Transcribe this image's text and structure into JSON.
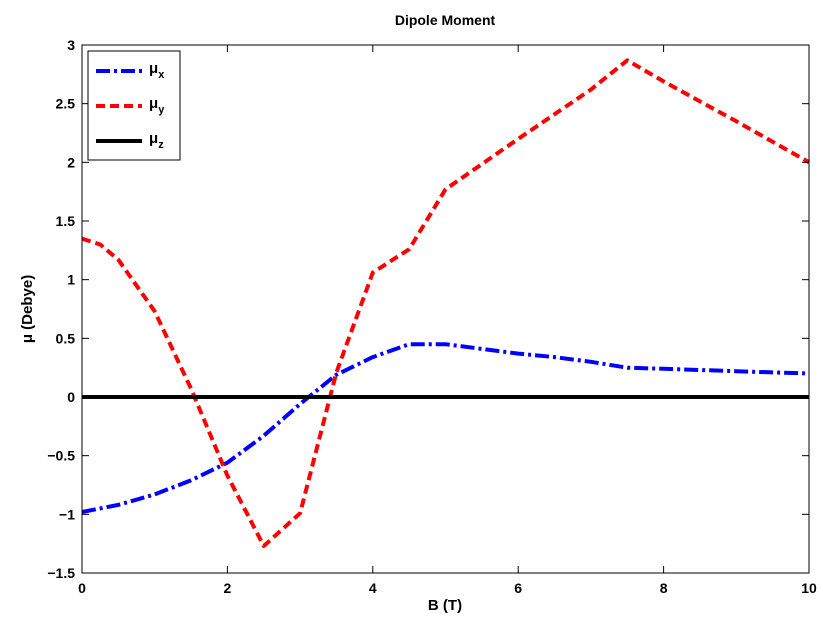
{
  "chart_data": {
    "type": "line",
    "title": "Dipole Moment",
    "xlabel": "B (T)",
    "ylabel": "μ (Debye)",
    "xlim": [
      0,
      10
    ],
    "ylim": [
      -1.5,
      3
    ],
    "xticks": [
      0,
      2,
      4,
      6,
      8,
      10
    ],
    "yticks": [
      -1.5,
      -1,
      -0.5,
      0,
      0.5,
      1,
      1.5,
      2,
      2.5,
      3
    ],
    "xtick_labels": [
      "0",
      "2",
      "4",
      "6",
      "8",
      "10"
    ],
    "ytick_labels": [
      "−1.5",
      "−1",
      "−0.5",
      "0",
      "0.5",
      "1",
      "1.5",
      "2",
      "2.5",
      "3"
    ],
    "grid": false,
    "legend_position": "top-left",
    "series": [
      {
        "name": "μx",
        "name_main": "μ",
        "name_sub": "x",
        "color": "#0000ff",
        "style": "dash-dot",
        "x": [
          0,
          0.5,
          1,
          1.5,
          2,
          2.5,
          3,
          3.5,
          4,
          4.5,
          5,
          5.5,
          6,
          6.5,
          7,
          7.5,
          8,
          8.5,
          9,
          9.5,
          10
        ],
        "y": [
          -0.98,
          -0.92,
          -0.83,
          -0.71,
          -0.56,
          -0.33,
          -0.06,
          0.19,
          0.34,
          0.45,
          0.45,
          0.41,
          0.37,
          0.34,
          0.3,
          0.25,
          0.24,
          0.23,
          0.22,
          0.21,
          0.2
        ]
      },
      {
        "name": "μy",
        "name_main": "μ",
        "name_sub": "y",
        "color": "#ff0000",
        "style": "dashed",
        "x": [
          0,
          0.25,
          0.5,
          1,
          1.5,
          2,
          2.5,
          3,
          3.5,
          4,
          4.5,
          5,
          6,
          7,
          7.5,
          8,
          9,
          10
        ],
        "y": [
          1.35,
          1.3,
          1.17,
          0.73,
          0.07,
          -0.67,
          -1.27,
          -0.99,
          0.21,
          1.06,
          1.26,
          1.77,
          2.2,
          2.62,
          2.87,
          2.69,
          2.35,
          2.0
        ]
      },
      {
        "name": "μz",
        "name_main": "μ",
        "name_sub": "z",
        "color": "#000000",
        "style": "solid",
        "x": [
          0,
          10
        ],
        "y": [
          0,
          0
        ]
      }
    ]
  }
}
